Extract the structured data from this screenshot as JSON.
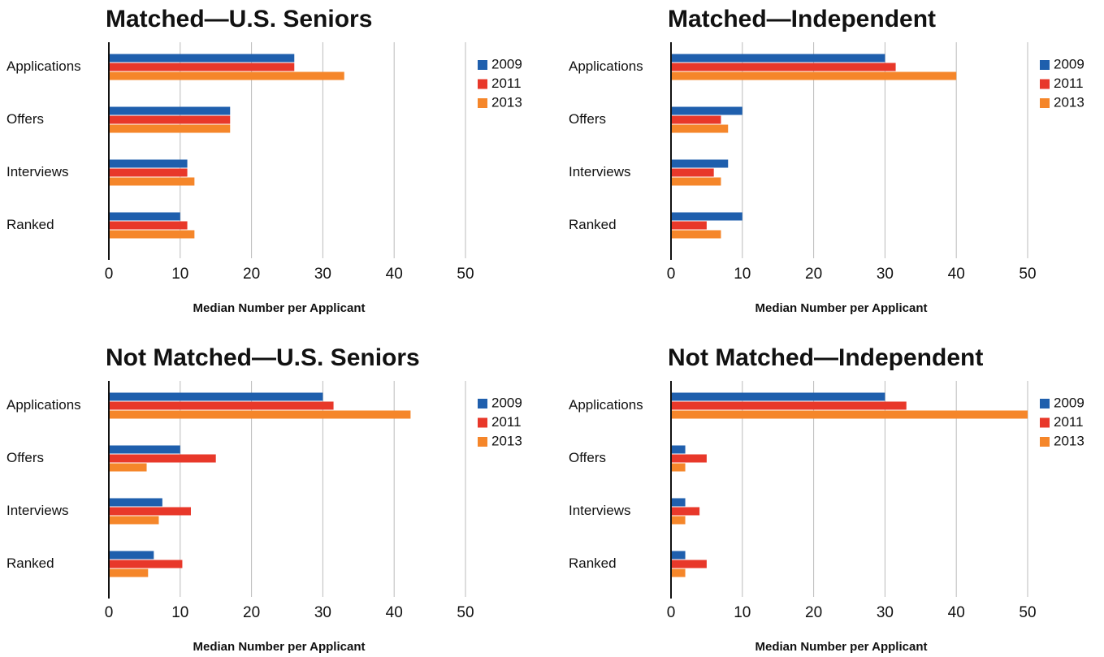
{
  "chart_data": [
    {
      "type": "hbar",
      "title": "Matched—U.S. Seniors",
      "xlabel": "Median Number per Applicant",
      "categories": [
        "Applications",
        "Offers",
        "Interviews",
        "Ranked"
      ],
      "series": [
        {
          "name": "2009",
          "color": "#1f5fad",
          "values": [
            26,
            17,
            11,
            10
          ]
        },
        {
          "name": "2011",
          "color": "#e8382a",
          "values": [
            26,
            17,
            11,
            11
          ]
        },
        {
          "name": "2013",
          "color": "#f5862a",
          "values": [
            33,
            17,
            12,
            12
          ]
        }
      ],
      "xlim": [
        0,
        50
      ],
      "xticks": [
        0,
        10,
        20,
        30,
        40,
        50
      ],
      "grid": true,
      "legend": "right"
    },
    {
      "type": "hbar",
      "title": "Matched—Independent",
      "xlabel": "Median Number per Applicant",
      "categories": [
        "Applications",
        "Offers",
        "Interviews",
        "Ranked"
      ],
      "series": [
        {
          "name": "2009",
          "color": "#1f5fad",
          "values": [
            30,
            10,
            8,
            10
          ]
        },
        {
          "name": "2011",
          "color": "#e8382a",
          "values": [
            31.5,
            7,
            6,
            5
          ]
        },
        {
          "name": "2013",
          "color": "#f5862a",
          "values": [
            40,
            8,
            7,
            7
          ]
        }
      ],
      "xlim": [
        0,
        50
      ],
      "xticks": [
        0,
        10,
        20,
        30,
        40,
        50
      ],
      "grid": true,
      "legend": "right"
    },
    {
      "type": "hbar",
      "title": "Not Matched—U.S. Seniors",
      "xlabel": "Median Number per Applicant",
      "categories": [
        "Applications",
        "Offers",
        "Interviews",
        "Ranked"
      ],
      "series": [
        {
          "name": "2009",
          "color": "#1f5fad",
          "values": [
            30,
            10,
            7.5,
            6.3
          ]
        },
        {
          "name": "2011",
          "color": "#e8382a",
          "values": [
            31.5,
            15,
            11.5,
            10.3
          ]
        },
        {
          "name": "2013",
          "color": "#f5862a",
          "values": [
            42.3,
            5.3,
            7,
            5.5
          ]
        }
      ],
      "xlim": [
        0,
        50
      ],
      "xticks": [
        0,
        10,
        20,
        30,
        40,
        50
      ],
      "grid": true,
      "legend": "right"
    },
    {
      "type": "hbar",
      "title": "Not Matched—Independent",
      "xlabel": "Median Number per Applicant",
      "categories": [
        "Applications",
        "Offers",
        "Interviews",
        "Ranked"
      ],
      "series": [
        {
          "name": "2009",
          "color": "#1f5fad",
          "values": [
            30,
            2,
            2,
            2
          ]
        },
        {
          "name": "2011",
          "color": "#e8382a",
          "values": [
            33,
            5,
            4,
            5
          ]
        },
        {
          "name": "2013",
          "color": "#f5862a",
          "values": [
            50,
            2,
            2,
            2
          ]
        }
      ],
      "xlim": [
        0,
        50
      ],
      "xticks": [
        0,
        10,
        20,
        30,
        40,
        50
      ],
      "grid": true,
      "legend": "right"
    }
  ]
}
